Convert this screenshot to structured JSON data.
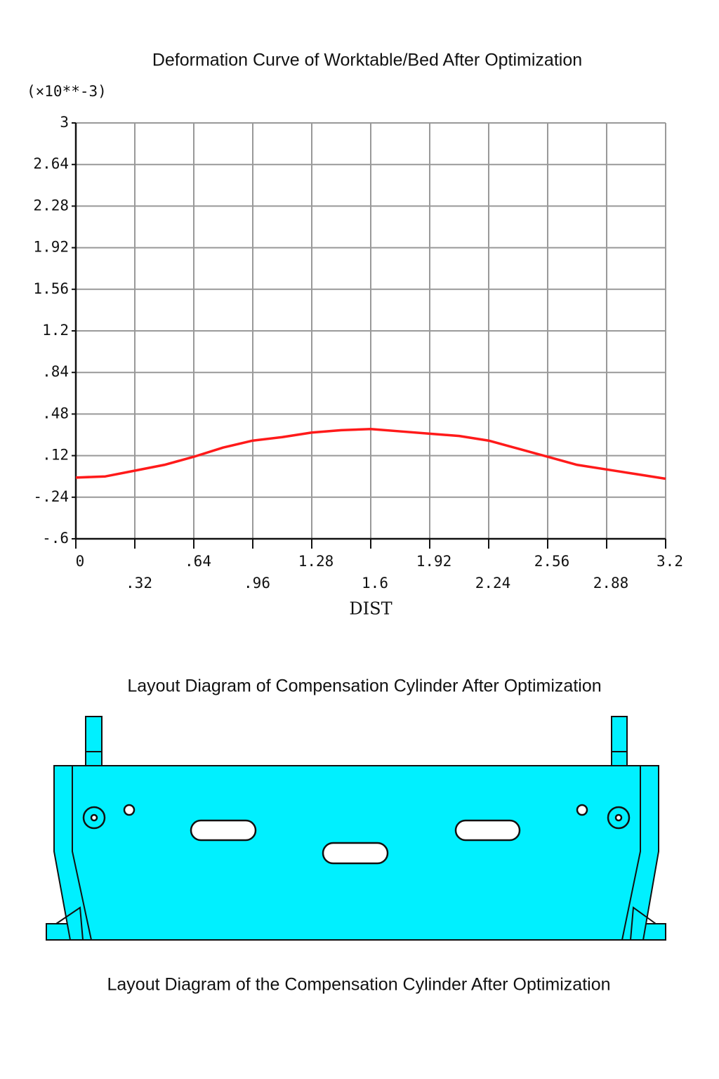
{
  "chart_data": {
    "type": "line",
    "title": "Deformation Curve of Worktable/Bed After Optimization",
    "y_unit": "(×10**-3)",
    "x_label": "DIST",
    "x": [
      0,
      0.16,
      0.32,
      0.48,
      0.64,
      0.8,
      0.96,
      1.12,
      1.28,
      1.44,
      1.6,
      1.76,
      1.92,
      2.08,
      2.24,
      2.4,
      2.56,
      2.72,
      2.88,
      3.04,
      3.2
    ],
    "series": [
      {
        "color": "#ff1a1a",
        "values": [
          -0.07,
          -0.06,
          -0.01,
          0.04,
          0.11,
          0.19,
          0.25,
          0.28,
          0.32,
          0.34,
          0.35,
          0.33,
          0.31,
          0.29,
          0.25,
          0.18,
          0.11,
          0.04,
          0.0,
          -0.04,
          -0.08
        ]
      }
    ],
    "xlim": [
      0,
      3.2
    ],
    "xticks": [
      0,
      {
        "value": 0.32,
        "label": ".32"
      },
      {
        "value": 0.64,
        "label": ".64"
      },
      {
        "value": 0.96,
        "label": ".96"
      },
      1.28,
      1.6,
      1.92,
      2.24,
      2.56,
      2.88,
      3.2
    ],
    "ylim": [
      -0.6,
      3
    ],
    "yticks": [
      3,
      2.64,
      2.28,
      1.92,
      1.56,
      1.2,
      {
        "value": 0.84,
        "label": ".84"
      },
      {
        "value": 0.48,
        "label": ".48"
      },
      {
        "value": 0.12,
        "label": ".12"
      },
      {
        "value": -0.24,
        "label": "-.24"
      },
      {
        "value": -0.6,
        "label": "-.6"
      }
    ],
    "grid": true
  },
  "diagram": {
    "title": "Layout Diagram of Compensation Cylinder After Optimization",
    "caption": "Layout Diagram of the Compensation Cylinder After Optimization"
  }
}
